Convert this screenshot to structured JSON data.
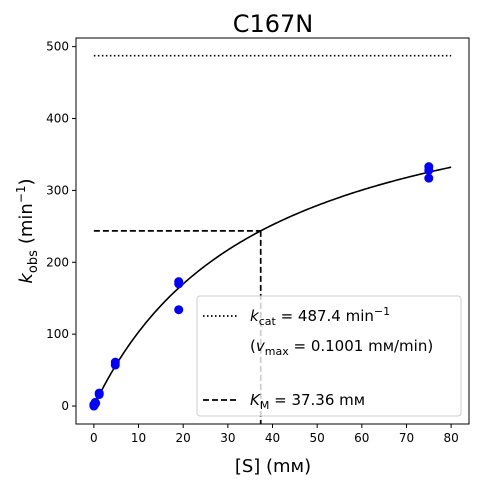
{
  "chart_data": {
    "type": "scatter",
    "title": "C167N",
    "xlabel": "[S] (mм)",
    "ylabel_main": "k",
    "ylabel_sub": "obs",
    "ylabel_unit_open": "(min",
    "ylabel_unit_sup": "−1",
    "ylabel_unit_close": ")",
    "xlim": [
      -4,
      84
    ],
    "ylim": [
      -25,
      512
    ],
    "xticks": [
      0,
      10,
      20,
      30,
      40,
      50,
      60,
      70,
      80
    ],
    "yticks": [
      0,
      100,
      200,
      300,
      400,
      500
    ],
    "grid": false,
    "legend_position": "lower-right",
    "points": [
      {
        "x": 0.0,
        "y": 0
      },
      {
        "x": 0.0,
        "y": 2
      },
      {
        "x": 0.1,
        "y": 1
      },
      {
        "x": 0.2,
        "y": 3
      },
      {
        "x": 0.3,
        "y": 5
      },
      {
        "x": 0.4,
        "y": 4
      },
      {
        "x": 1.2,
        "y": 16
      },
      {
        "x": 1.2,
        "y": 18
      },
      {
        "x": 4.8,
        "y": 57
      },
      {
        "x": 4.8,
        "y": 61
      },
      {
        "x": 19,
        "y": 134
      },
      {
        "x": 19,
        "y": 170
      },
      {
        "x": 19,
        "y": 173
      },
      {
        "x": 75,
        "y": 317
      },
      {
        "x": 75,
        "y": 328
      },
      {
        "x": 75,
        "y": 333
      }
    ],
    "fit": {
      "kcat": 487.4,
      "km": 37.36,
      "x_start": 0,
      "x_end": 80
    },
    "kcat_line": {
      "y": 487.4,
      "x_start": 0,
      "x_end": 80
    },
    "km_lines": {
      "x": 37.36,
      "y": 243.7,
      "x_start": 0
    },
    "legend": {
      "kcat_prefix": "k",
      "kcat_sub": "cat",
      "kcat_value": " = 487.4 min",
      "kcat_sup": "−1",
      "vmax_open": "(",
      "vmax_main": "v",
      "vmax_sub": "max",
      "vmax_value": " = 0.1001 mм/min)",
      "km_prefix": "K",
      "km_sub": "M",
      "km_value": " = 37.36 mм"
    },
    "colors": {
      "points": "#0000ff",
      "lines": "#000000"
    }
  }
}
